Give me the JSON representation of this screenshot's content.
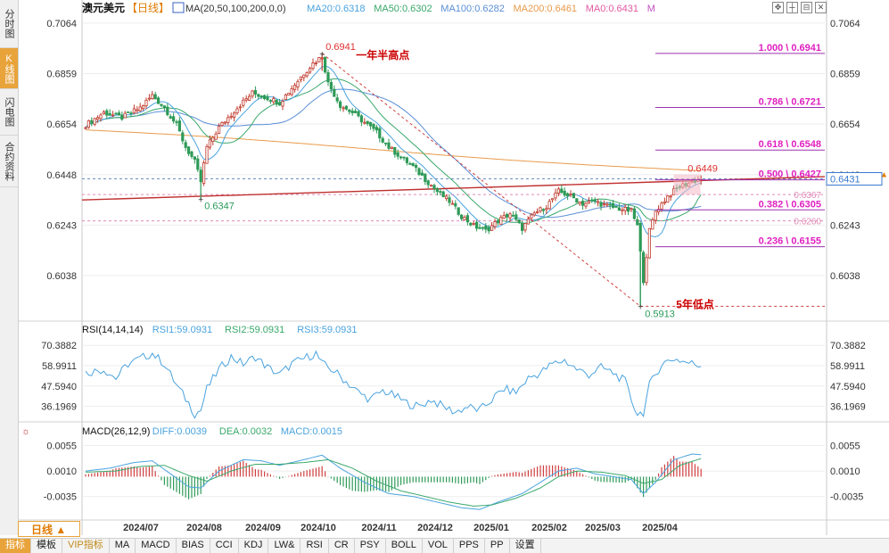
{
  "left_tabs": [
    "分时图",
    "K线图",
    "闪电图",
    "合约资料"
  ],
  "bottom_tabs": [
    "指标",
    "模板",
    "VIP指标",
    "MA",
    "MACD",
    "BIAS",
    "CCI",
    "KDJ",
    "LW&",
    "RSI",
    "CR",
    "PSY",
    "BOLL",
    "VOL",
    "PPS",
    "PP",
    "设置"
  ],
  "period": "日线 ▲",
  "main_header": {
    "symbol": "澳元美元",
    "period": "【日线】",
    "items": [
      {
        "text": "MA(20,50,100,200,0,0)",
        "color": "#333333"
      },
      {
        "text": "MA20:0.6318",
        "color": "#4aa3df"
      },
      {
        "text": "MA50:0.6302",
        "color": "#3aa86b"
      },
      {
        "text": "MA100:0.6282",
        "color": "#5a8fd6"
      },
      {
        "text": "MA200:0.6461",
        "color": "#e89a4a"
      },
      {
        "text": "MA0:0.6431",
        "color": "#e05aa0"
      },
      {
        "text": "M",
        "color": "#c050c0"
      }
    ]
  },
  "rsi_header": {
    "title": "RSI(14,14,14)",
    "items": [
      {
        "text": "RSI1:59.0931",
        "color": "#4aa3df"
      },
      {
        "text": "RSI2:59.0931",
        "color": "#3aa86b"
      },
      {
        "text": "RSI3:59.0931",
        "color": "#4aa3df"
      }
    ]
  },
  "macd_header": {
    "title": "MACD(26,12,9)",
    "items": [
      {
        "text": "DIFF:0.0039",
        "color": "#4aa3df"
      },
      {
        "text": "DEA:0.0032",
        "color": "#3aa86b"
      },
      {
        "text": "MACD:0.0015",
        "color": "#4aa3df"
      }
    ]
  },
  "toolbar_icons": [
    "move-icon",
    "crosshair-icon",
    "zoom-out-icon",
    "close-icon"
  ],
  "chart_data": {
    "type": "candlestick",
    "price_axis_ticks": [
      "0.7064",
      "0.6859",
      "0.6654",
      "0.6448",
      "0.6243",
      "0.6038"
    ],
    "price_range": [
      0.586,
      0.71
    ],
    "x_labels": [
      "2024/07",
      "2024/08",
      "2024/09",
      "2024/10",
      "2024/11",
      "2024/12",
      "2025/01",
      "2025/02",
      "2025/03",
      "2025/04"
    ],
    "current_price": "0.6431",
    "dashed_levels": [
      {
        "value": 0.6431,
        "color": "#6a8fc0"
      },
      {
        "value": 0.6367,
        "color": "#e08ab8",
        "label": "0.6367"
      },
      {
        "value": 0.626,
        "color": "#e08ab8",
        "label": "0.6260"
      }
    ],
    "fibonacci": [
      {
        "ratio": "1.000",
        "price": 0.6941,
        "label": "1.000 \\ 0.6941"
      },
      {
        "ratio": "0.786",
        "price": 0.6721,
        "label": "0.786 \\ 0.6721"
      },
      {
        "ratio": "0.618",
        "price": 0.6548,
        "label": "0.618 \\ 0.6548"
      },
      {
        "ratio": "0.500",
        "price": 0.6427,
        "label": "0.500 \\ 0.6427"
      },
      {
        "ratio": "0.382",
        "price": 0.6305,
        "label": "0.382 \\ 0.6305"
      },
      {
        "ratio": "0.236",
        "price": 0.6155,
        "label": "0.236 \\ 0.6155"
      }
    ],
    "annotations": [
      {
        "text": "0.6941",
        "price": 0.6941,
        "color": "#e03030"
      },
      {
        "text": "一年半高点",
        "price": 0.6941,
        "color": "#cc0000"
      },
      {
        "text": "0.6347",
        "price": 0.6347,
        "color": "#2a9a5a"
      },
      {
        "text": "0.6449",
        "price": 0.6449,
        "color": "#e03030"
      },
      {
        "text": "0.5913",
        "price": 0.5913,
        "color": "#2a9a5a"
      },
      {
        "text": "5年低点",
        "price": 0.5913,
        "color": "#cc0000"
      }
    ],
    "price_path": [
      [
        0,
        0.665
      ],
      [
        6,
        0.67
      ],
      [
        12,
        0.668
      ],
      [
        18,
        0.672
      ],
      [
        22,
        0.677
      ],
      [
        26,
        0.672
      ],
      [
        30,
        0.665
      ],
      [
        33,
        0.656
      ],
      [
        36,
        0.65
      ],
      [
        38,
        0.642
      ],
      [
        40,
        0.656
      ],
      [
        44,
        0.664
      ],
      [
        50,
        0.672
      ],
      [
        55,
        0.678
      ],
      [
        60,
        0.676
      ],
      [
        64,
        0.674
      ],
      [
        68,
        0.68
      ],
      [
        72,
        0.686
      ],
      [
        75,
        0.69
      ],
      [
        78,
        0.693
      ],
      [
        80,
        0.682
      ],
      [
        84,
        0.673
      ],
      [
        88,
        0.67
      ],
      [
        92,
        0.666
      ],
      [
        96,
        0.662
      ],
      [
        100,
        0.656
      ],
      [
        104,
        0.652
      ],
      [
        108,
        0.648
      ],
      [
        112,
        0.643
      ],
      [
        116,
        0.638
      ],
      [
        120,
        0.634
      ],
      [
        124,
        0.628
      ],
      [
        128,
        0.624
      ],
      [
        132,
        0.622
      ],
      [
        136,
        0.626
      ],
      [
        140,
        0.629
      ],
      [
        144,
        0.623
      ],
      [
        148,
        0.629
      ],
      [
        152,
        0.632
      ],
      [
        156,
        0.638
      ],
      [
        160,
        0.636
      ],
      [
        164,
        0.633
      ],
      [
        168,
        0.634
      ],
      [
        172,
        0.632
      ],
      [
        176,
        0.631
      ],
      [
        180,
        0.63
      ],
      [
        182,
        0.624
      ],
      [
        184,
        0.602
      ],
      [
        186,
        0.622
      ],
      [
        188,
        0.63
      ],
      [
        192,
        0.636
      ],
      [
        196,
        0.64
      ],
      [
        200,
        0.642
      ],
      [
        203,
        0.6431
      ]
    ],
    "rsi": {
      "ticks": [
        "70.3882",
        "58.9911",
        "47.5940",
        "36.1969"
      ],
      "range": [
        28,
        75
      ],
      "values": [
        [
          0,
          55
        ],
        [
          6,
          57
        ],
        [
          10,
          52
        ],
        [
          14,
          60
        ],
        [
          18,
          63
        ],
        [
          22,
          66
        ],
        [
          26,
          60
        ],
        [
          30,
          48
        ],
        [
          34,
          38
        ],
        [
          36,
          32
        ],
        [
          38,
          34
        ],
        [
          40,
          46
        ],
        [
          44,
          57
        ],
        [
          48,
          64
        ],
        [
          52,
          60
        ],
        [
          56,
          64
        ],
        [
          60,
          58
        ],
        [
          64,
          54
        ],
        [
          68,
          60
        ],
        [
          72,
          63
        ],
        [
          76,
          66
        ],
        [
          78,
          60
        ],
        [
          82,
          56
        ],
        [
          86,
          50
        ],
        [
          90,
          44
        ],
        [
          94,
          40
        ],
        [
          98,
          45
        ],
        [
          102,
          42
        ],
        [
          106,
          38
        ],
        [
          110,
          36
        ],
        [
          114,
          40
        ],
        [
          118,
          36
        ],
        [
          122,
          33
        ],
        [
          126,
          36
        ],
        [
          130,
          34
        ],
        [
          134,
          40
        ],
        [
          138,
          46
        ],
        [
          142,
          44
        ],
        [
          146,
          52
        ],
        [
          150,
          55
        ],
        [
          154,
          60
        ],
        [
          158,
          62
        ],
        [
          162,
          57
        ],
        [
          166,
          54
        ],
        [
          170,
          58
        ],
        [
          174,
          55
        ],
        [
          178,
          50
        ],
        [
          180,
          40
        ],
        [
          182,
          32
        ],
        [
          184,
          33
        ],
        [
          186,
          48
        ],
        [
          190,
          60
        ],
        [
          194,
          63
        ],
        [
          198,
          61
        ],
        [
          203,
          59.09
        ]
      ]
    },
    "macd": {
      "ticks": [
        "0.0055",
        "0.0010",
        "-0.0035"
      ],
      "range": [
        -0.0075,
        0.007
      ],
      "diff": [
        [
          0,
          0.001
        ],
        [
          8,
          0.0015
        ],
        [
          16,
          0.0025
        ],
        [
          22,
          0.0028
        ],
        [
          28,
          0.0005
        ],
        [
          34,
          -0.0018
        ],
        [
          38,
          -0.002
        ],
        [
          44,
          0.001
        ],
        [
          52,
          0.003
        ],
        [
          58,
          0.0028
        ],
        [
          64,
          0.002
        ],
        [
          72,
          0.003
        ],
        [
          78,
          0.0038
        ],
        [
          84,
          0.0015
        ],
        [
          92,
          -0.001
        ],
        [
          100,
          -0.003
        ],
        [
          108,
          -0.0035
        ],
        [
          116,
          -0.0045
        ],
        [
          124,
          -0.0055
        ],
        [
          130,
          -0.0058
        ],
        [
          136,
          -0.0045
        ],
        [
          144,
          -0.003
        ],
        [
          150,
          -0.001
        ],
        [
          156,
          0.001
        ],
        [
          162,
          0.0015
        ],
        [
          168,
          0.0005
        ],
        [
          174,
          0.0
        ],
        [
          180,
          -0.0005
        ],
        [
          184,
          -0.003
        ],
        [
          188,
          -0.001
        ],
        [
          194,
          0.003
        ],
        [
          200,
          0.004
        ],
        [
          203,
          0.0039
        ]
      ],
      "dea": [
        [
          0,
          0.0008
        ],
        [
          10,
          0.001
        ],
        [
          18,
          0.0018
        ],
        [
          26,
          0.002
        ],
        [
          34,
          0.0002
        ],
        [
          40,
          -0.0008
        ],
        [
          48,
          0.001
        ],
        [
          56,
          0.0022
        ],
        [
          64,
          0.0022
        ],
        [
          72,
          0.0025
        ],
        [
          80,
          0.003
        ],
        [
          88,
          0.0015
        ],
        [
          96,
          -0.0008
        ],
        [
          104,
          -0.0025
        ],
        [
          112,
          -0.0035
        ],
        [
          120,
          -0.0045
        ],
        [
          128,
          -0.0052
        ],
        [
          134,
          -0.005
        ],
        [
          142,
          -0.0038
        ],
        [
          150,
          -0.002
        ],
        [
          156,
          0.0
        ],
        [
          162,
          0.001
        ],
        [
          170,
          0.0008
        ],
        [
          178,
          0.0002
        ],
        [
          184,
          -0.0012
        ],
        [
          190,
          -0.0005
        ],
        [
          196,
          0.002
        ],
        [
          203,
          0.0032
        ]
      ]
    }
  }
}
